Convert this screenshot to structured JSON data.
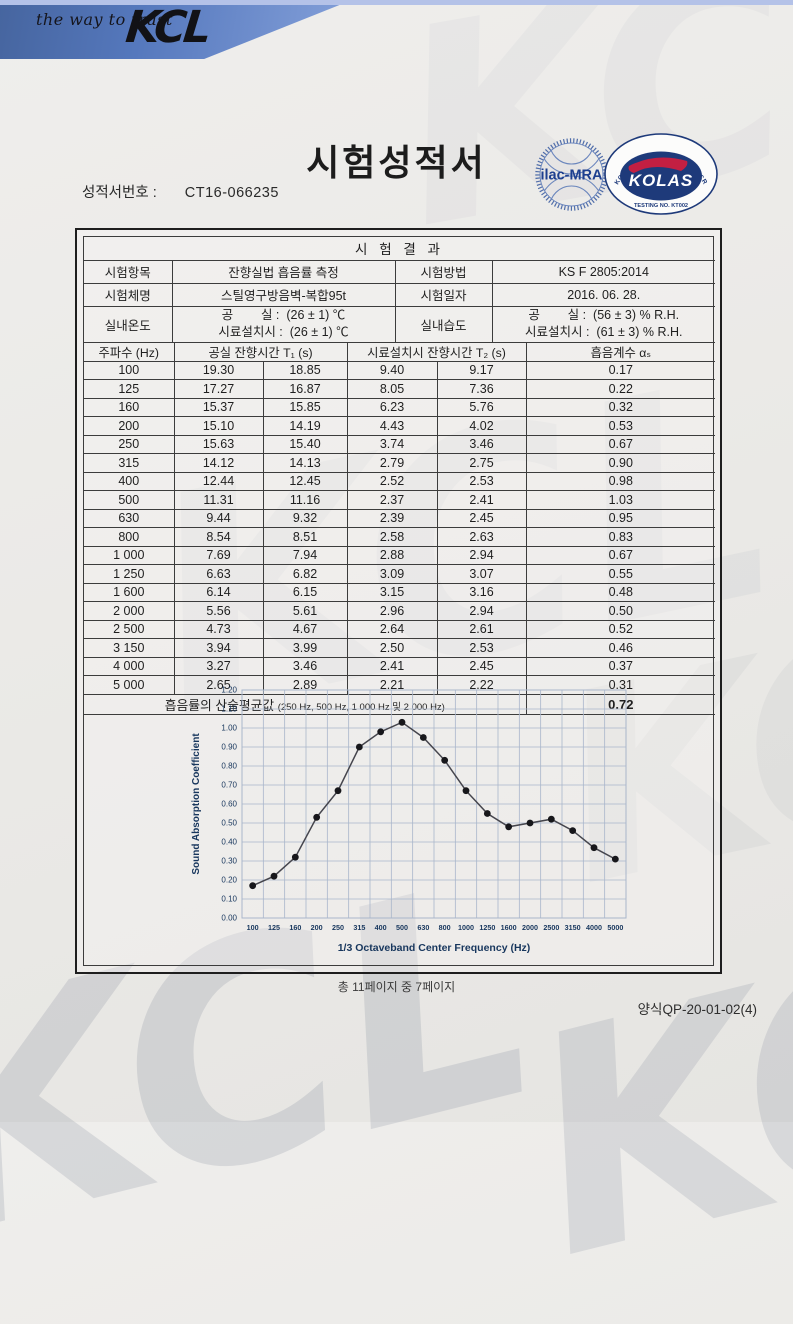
{
  "header": {
    "tagline": "the way to trust",
    "logo_text": "KCL",
    "banner_color": "#5578bd"
  },
  "title": {
    "doc_title": "시험성적서",
    "report_no_label": "성적서번호 :",
    "report_no_value": "CT16-066235"
  },
  "stamps": {
    "ilac": {
      "text": "ilac-MRA"
    },
    "kolas": {
      "ring_text": "KOREA LABORATORY ACCREDITATION SCHEME",
      "name": "KOLAS",
      "sub_text": "TESTING  NO.  KT002"
    }
  },
  "results": {
    "section_title": "시 험 결 과",
    "info_rows": [
      {
        "label1": "시험항목",
        "value1": "잔향실법 흡음률 측정",
        "label2": "시험방법",
        "value2": "KS F 2805:2014"
      },
      {
        "label1": "시험체명",
        "value1": "스틸영구방음벽-복합95t",
        "label2": "시험일자",
        "value2": "2016. 06. 28."
      }
    ],
    "env_row": {
      "label1": "실내온도",
      "value1_line1": "공        실 :  (26 ± 1) ℃",
      "value1_line2": "시료설치시 :  (26 ± 1) ℃",
      "label2": "실내습도",
      "value2_line1": "공        실 :  (56 ± 3) % R.H.",
      "value2_line2": "시료설치시 :  (61 ± 3) % R.H."
    },
    "columns": {
      "freq": "주파수 (Hz)",
      "t1": "공실 잔향시간 T₁ (s)",
      "t2": "시료설치시 잔향시간 T₂ (s)",
      "alpha": "흡음계수 αₛ"
    },
    "rows": [
      [
        "100",
        "19.30",
        "18.85",
        "9.40",
        "9.17",
        "0.17"
      ],
      [
        "125",
        "17.27",
        "16.87",
        "8.05",
        "7.36",
        "0.22"
      ],
      [
        "160",
        "15.37",
        "15.85",
        "6.23",
        "5.76",
        "0.32"
      ],
      [
        "200",
        "15.10",
        "14.19",
        "4.43",
        "4.02",
        "0.53"
      ],
      [
        "250",
        "15.63",
        "15.40",
        "3.74",
        "3.46",
        "0.67"
      ],
      [
        "315",
        "14.12",
        "14.13",
        "2.79",
        "2.75",
        "0.90"
      ],
      [
        "400",
        "12.44",
        "12.45",
        "2.52",
        "2.53",
        "0.98"
      ],
      [
        "500",
        "11.31",
        "11.16",
        "2.37",
        "2.41",
        "1.03"
      ],
      [
        "630",
        "9.44",
        "9.32",
        "2.39",
        "2.45",
        "0.95"
      ],
      [
        "800",
        "8.54",
        "8.51",
        "2.58",
        "2.63",
        "0.83"
      ],
      [
        "1 000",
        "7.69",
        "7.94",
        "2.88",
        "2.94",
        "0.67"
      ],
      [
        "1 250",
        "6.63",
        "6.82",
        "3.09",
        "3.07",
        "0.55"
      ],
      [
        "1 600",
        "6.14",
        "6.15",
        "3.15",
        "3.16",
        "0.48"
      ],
      [
        "2 000",
        "5.56",
        "5.61",
        "2.96",
        "2.94",
        "0.50"
      ],
      [
        "2 500",
        "4.73",
        "4.67",
        "2.64",
        "2.61",
        "0.52"
      ],
      [
        "3 150",
        "3.94",
        "3.99",
        "2.50",
        "2.53",
        "0.46"
      ],
      [
        "4 000",
        "3.27",
        "3.46",
        "2.41",
        "2.45",
        "0.37"
      ],
      [
        "5 000",
        "2.65",
        "2.89",
        "2.21",
        "2.22",
        "0.31"
      ]
    ],
    "average_row": {
      "label": "흡음률의 산술평균값",
      "label_note": "(250 Hz, 500 Hz, 1 000 Hz 및 2 000 Hz)",
      "value": "0.72"
    }
  },
  "chart_data": {
    "type": "line",
    "categories": [
      "100",
      "125",
      "160",
      "200",
      "250",
      "315",
      "400",
      "500",
      "630",
      "800",
      "1000",
      "1250",
      "1600",
      "2000",
      "2500",
      "3150",
      "4000",
      "5000"
    ],
    "values": [
      0.17,
      0.22,
      0.32,
      0.53,
      0.67,
      0.9,
      0.98,
      1.03,
      0.95,
      0.83,
      0.67,
      0.55,
      0.48,
      0.5,
      0.52,
      0.46,
      0.37,
      0.31
    ],
    "title": "",
    "xlabel": "1/3 Octaveband Center Frequency (Hz)",
    "ylabel": "Sound Absorption Coefficient",
    "ylim": [
      0.0,
      1.2
    ],
    "ytick_step": 0.1,
    "grid": true,
    "legend": "none",
    "line_color": "#45454d",
    "marker_color": "#17171b",
    "grid_color": "#a9b6cb",
    "text_color": "#17365d"
  },
  "footer": {
    "page_text": "총 11페이지 중 7페이지",
    "form_code": "양식QP-20-01-02(4)"
  },
  "watermark": {
    "text": "KCL"
  }
}
